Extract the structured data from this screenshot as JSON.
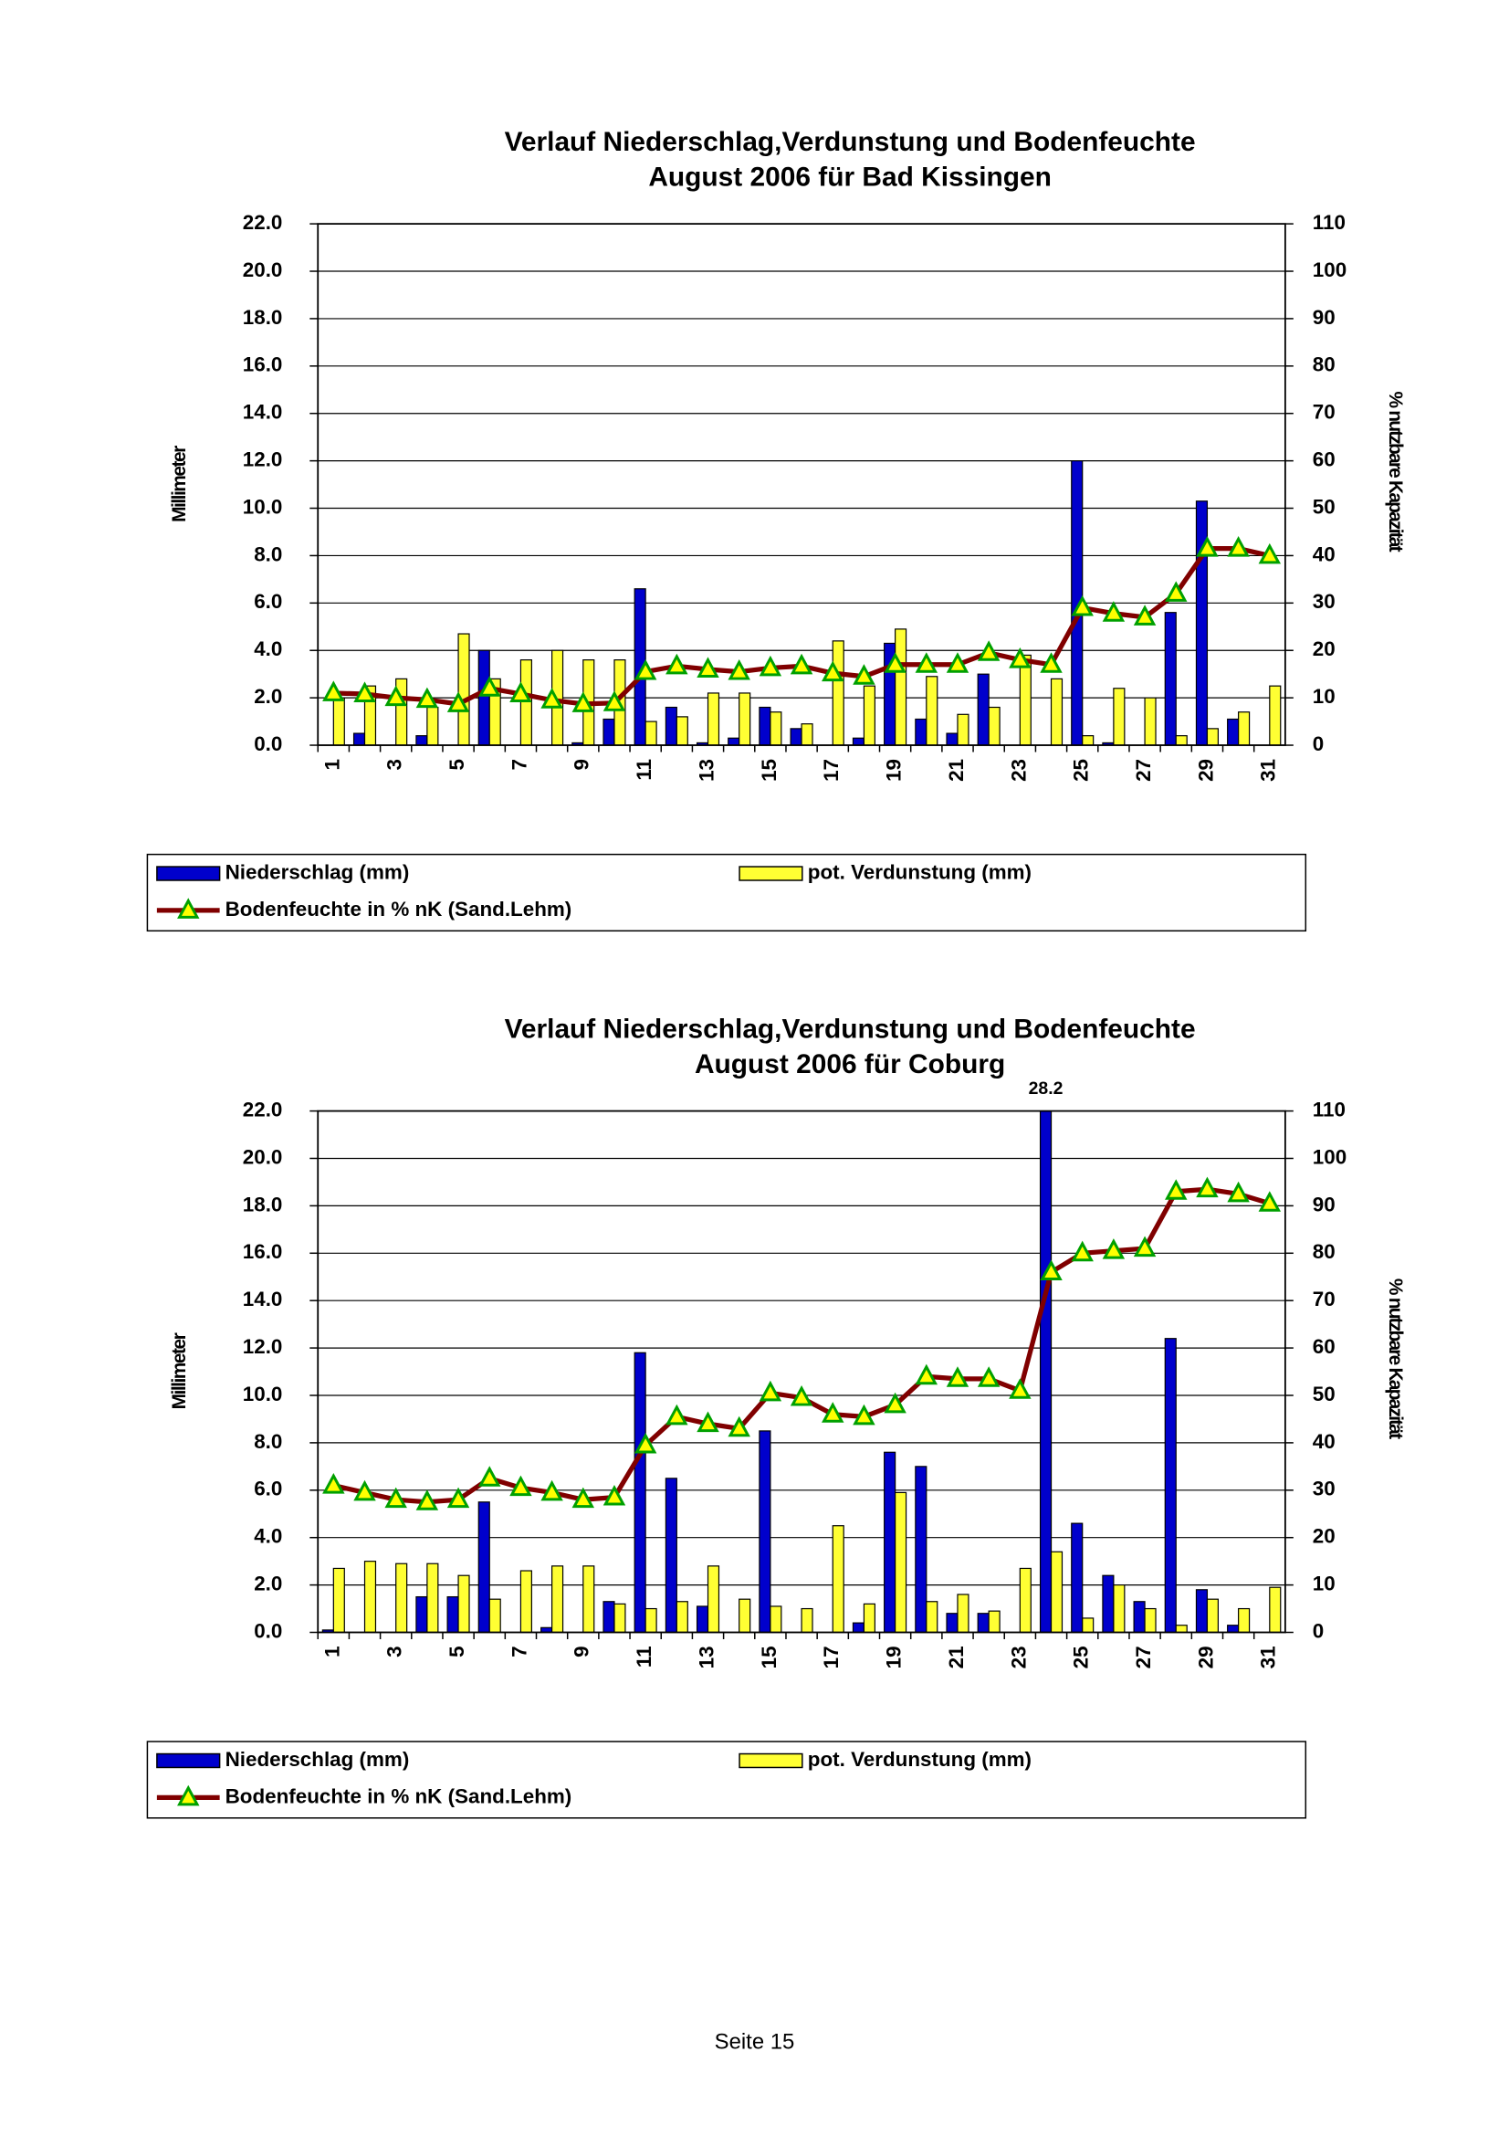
{
  "chart_data": [
    {
      "type": "bar-line",
      "title": "Verlauf Niederschlag,Verdunstung und Bodenfeuchte",
      "subtitle": "August  2006 für Bad Kissingen",
      "y_label": "Millimeter",
      "y2_label": "% nutzbare Kapazität",
      "categories": [
        1,
        null,
        3,
        null,
        5,
        null,
        7,
        null,
        9,
        null,
        11,
        null,
        13,
        null,
        15,
        null,
        17,
        null,
        19,
        null,
        21,
        null,
        23,
        null,
        25,
        null,
        27,
        null,
        29,
        null,
        31
      ],
      "series": [
        {
          "name": "Niederschlag (mm)",
          "color": "#0000cc",
          "values": [
            0,
            0.5,
            0,
            0.4,
            0,
            4.0,
            0,
            0,
            0.1,
            1.1,
            6.6,
            1.6,
            0.1,
            0.3,
            1.6,
            0.7,
            0,
            0.3,
            4.3,
            1.1,
            0.5,
            3.0,
            0,
            0,
            12.0,
            0.1,
            0,
            5.6,
            10.3,
            1.1,
            0
          ]
        },
        {
          "name": "pot. Verdunstung (mm)",
          "color": "#ffff33",
          "values": [
            2.0,
            2.5,
            2.8,
            1.6,
            4.7,
            2.8,
            3.6,
            4.0,
            3.6,
            3.6,
            1.0,
            1.2,
            2.2,
            2.2,
            1.4,
            0.9,
            4.4,
            2.5,
            4.9,
            2.9,
            1.3,
            1.6,
            3.8,
            2.8,
            0.4,
            2.4,
            2.0,
            0.4,
            0.7,
            1.4,
            2.5
          ]
        },
        {
          "name": "Bodenfeuchte in % nK (Sand.Lehm)",
          "color": "#800000",
          "marker_color": "#00a000",
          "axis": "y2",
          "values": [
            11,
            10.8,
            10,
            9.6,
            8.7,
            12,
            10.8,
            9.5,
            8.7,
            8.9,
            15.5,
            16.7,
            16,
            15.5,
            16.3,
            16.7,
            15.2,
            14.5,
            17,
            17,
            17,
            19.5,
            18,
            17,
            29,
            27.8,
            27,
            32,
            41.5,
            41.5,
            40
          ]
        }
      ],
      "ylim": [
        0,
        22
      ],
      "yticks": [
        {
          "value": 0,
          "label": "0.0"
        },
        {
          "value": 2,
          "label": "2.0"
        },
        {
          "value": 4,
          "label": "4.0"
        },
        {
          "value": 6,
          "label": "6.0"
        },
        {
          "value": 8,
          "label": "8.0"
        },
        {
          "value": 10,
          "label": "10.0"
        },
        {
          "value": 12,
          "label": "12.0"
        },
        {
          "value": 14,
          "label": "14.0"
        },
        {
          "value": 16,
          "label": "16.0"
        },
        {
          "value": 18,
          "label": "18.0"
        },
        {
          "value": 20,
          "label": "20.0"
        },
        {
          "value": 22,
          "label": "22.0"
        }
      ],
      "y2lim": [
        0,
        110
      ],
      "y2ticks": [
        0,
        10,
        20,
        30,
        40,
        50,
        60,
        70,
        80,
        90,
        100,
        110
      ],
      "grid": true
    },
    {
      "type": "bar-line",
      "title": "Verlauf Niederschlag,Verdunstung und Bodenfeuchte",
      "subtitle": "August 2006 für Coburg",
      "y_label": "Millimeter",
      "y2_label": "% nutzbare Kapazität",
      "categories": [
        1,
        null,
        3,
        null,
        5,
        null,
        7,
        null,
        9,
        null,
        11,
        null,
        13,
        null,
        15,
        null,
        17,
        null,
        19,
        null,
        21,
        null,
        23,
        null,
        25,
        null,
        27,
        null,
        29,
        null,
        31
      ],
      "series": [
        {
          "name": "Niederschlag (mm)",
          "color": "#0000cc",
          "values": [
            0.1,
            0,
            0,
            1.5,
            1.5,
            5.5,
            0,
            0.2,
            0,
            1.3,
            11.8,
            6.5,
            1.1,
            0,
            8.5,
            0,
            0,
            0.4,
            7.6,
            7.0,
            0.8,
            0.8,
            0,
            28.2,
            4.6,
            2.4,
            1.3,
            12.4,
            1.8,
            0.3,
            0
          ],
          "labeled": [
            23
          ]
        },
        {
          "name": "pot. Verdunstung (mm)",
          "color": "#ffff33",
          "values": [
            2.7,
            3.0,
            2.9,
            2.9,
            2.4,
            1.4,
            2.6,
            2.8,
            2.8,
            1.2,
            1.0,
            1.3,
            2.8,
            1.4,
            1.1,
            1.0,
            4.5,
            1.2,
            5.9,
            1.3,
            1.6,
            0.9,
            2.7,
            3.4,
            0.6,
            2.0,
            1.0,
            0.3,
            1.4,
            1.0,
            1.9
          ]
        },
        {
          "name": "Bodenfeuchte in % nK (Sand.Lehm)",
          "color": "#800000",
          "marker_color": "#00a000",
          "axis": "y2",
          "values": [
            31,
            29.5,
            28,
            27.5,
            28,
            32.5,
            30.5,
            29.5,
            28,
            28.5,
            39.5,
            45.5,
            44,
            43,
            50.5,
            49.5,
            46,
            45.5,
            48,
            54,
            53.5,
            53.5,
            51,
            76,
            80,
            80.5,
            81,
            93,
            93.5,
            92.5,
            90.5
          ]
        }
      ],
      "ylim": [
        0,
        22
      ],
      "yticks": [
        {
          "value": 0,
          "label": "0.0"
        },
        {
          "value": 2,
          "label": "2.0"
        },
        {
          "value": 4,
          "label": "4.0"
        },
        {
          "value": 6,
          "label": "6.0"
        },
        {
          "value": 8,
          "label": "8.0"
        },
        {
          "value": 10,
          "label": "10.0"
        },
        {
          "value": 12,
          "label": "12.0"
        },
        {
          "value": 14,
          "label": "14.0"
        },
        {
          "value": 16,
          "label": "16.0"
        },
        {
          "value": 18,
          "label": "18.0"
        },
        {
          "value": 20,
          "label": "20.0"
        },
        {
          "value": 22,
          "label": "22.0"
        }
      ],
      "y2lim": [
        0,
        110
      ],
      "y2ticks": [
        0,
        10,
        20,
        30,
        40,
        50,
        60,
        70,
        80,
        90,
        100,
        110
      ],
      "grid": true
    }
  ],
  "footer": "Seite 15"
}
